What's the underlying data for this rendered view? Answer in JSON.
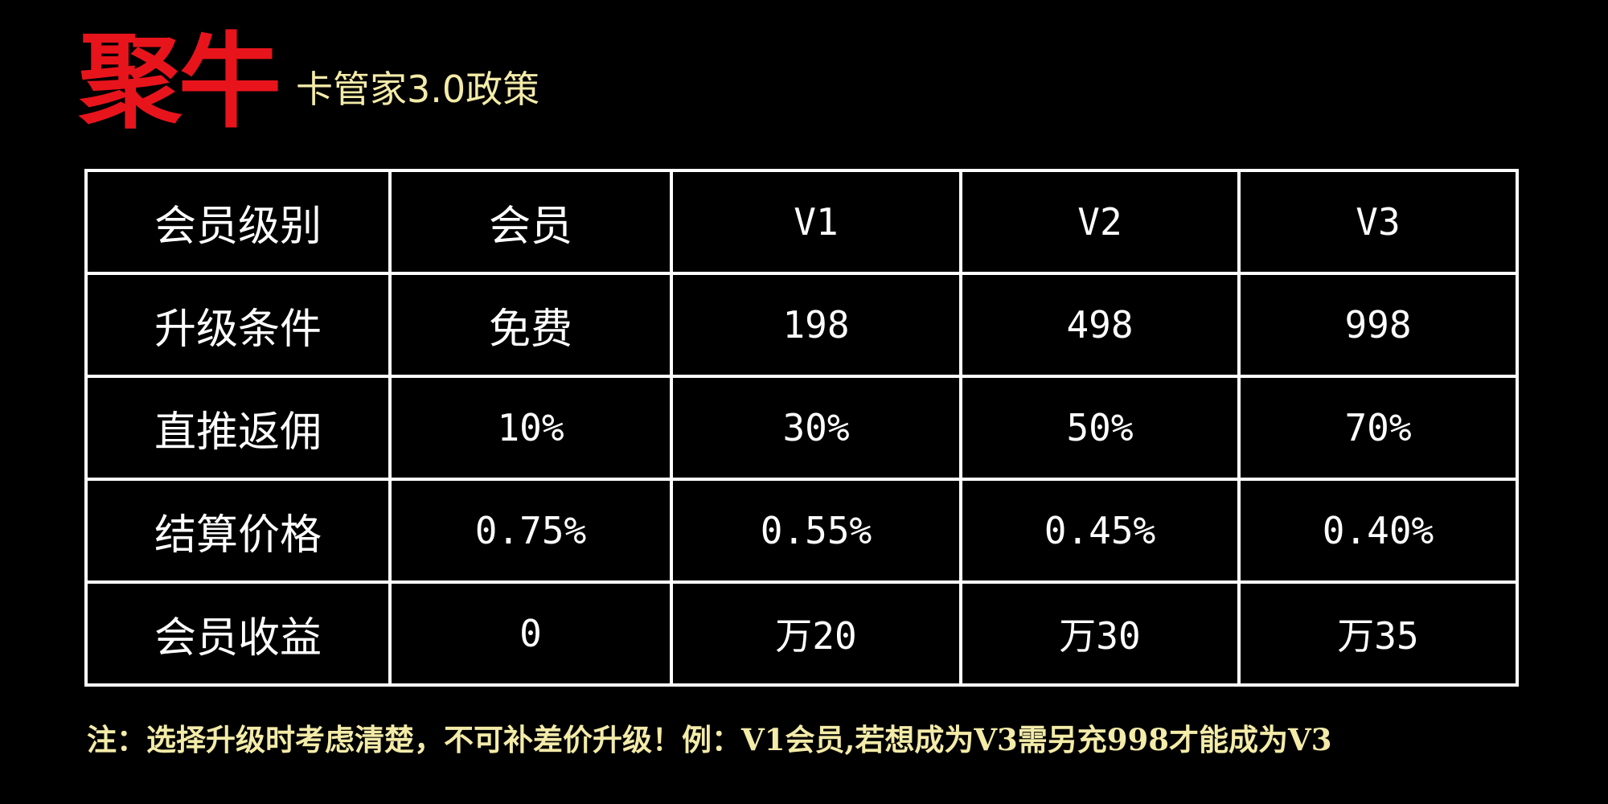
{
  "header": {
    "brand": "聚牛",
    "subtitle": "卡管家3.0政策"
  },
  "colors": {
    "background": "#000000",
    "brand": "#e8141c",
    "subtitle": "#f3eba8",
    "table_text": "#ffffff",
    "table_border": "#ffffff",
    "note": "#f3eba8"
  },
  "table": {
    "rows": [
      {
        "label": "会员级别",
        "cells": [
          "会员",
          "V1",
          "V2",
          "V3"
        ]
      },
      {
        "label": "升级条件",
        "cells": [
          "免费",
          "198",
          "498",
          "998"
        ]
      },
      {
        "label": "直推返佣",
        "cells": [
          "10%",
          "30%",
          "50%",
          "70%"
        ]
      },
      {
        "label": "结算价格",
        "cells": [
          "0.75%",
          "0.55%",
          "0.45%",
          "0.40%"
        ]
      },
      {
        "label": "会员收益",
        "cells": [
          "0",
          "万20",
          "万30",
          "万35"
        ]
      }
    ]
  },
  "note": "注：选择升级时考虑清楚，不可补差价升级！例：V1会员,若想成为V3需另充998才能成为V3"
}
